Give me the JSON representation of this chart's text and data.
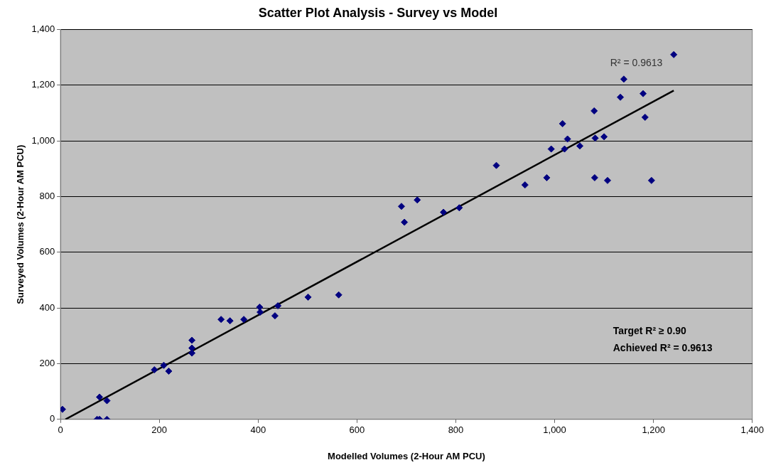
{
  "chart_data": {
    "type": "scatter",
    "title": "Scatter Plot Analysis - Survey vs Model",
    "xlabel": "Modelled Volumes (2-Hour AM PCU)",
    "ylabel": "Surveyed Volumes (2-Hour AM PCU)",
    "xlim": [
      0,
      1400
    ],
    "xticks": [
      {
        "value": 0,
        "label": "0"
      },
      {
        "value": 200,
        "label": "200"
      },
      {
        "value": 400,
        "label": "400"
      },
      {
        "value": 600,
        "label": "600"
      },
      {
        "value": 800,
        "label": "800"
      },
      {
        "value": 1000,
        "label": "1,000"
      },
      {
        "value": 1200,
        "label": "1,200"
      },
      {
        "value": 1400,
        "label": "1,400"
      }
    ],
    "ylim": [
      0,
      1400
    ],
    "yticks": [
      {
        "value": 0,
        "label": "0"
      },
      {
        "value": 200,
        "label": "200"
      },
      {
        "value": 400,
        "label": "400"
      },
      {
        "value": 600,
        "label": "600"
      },
      {
        "value": 800,
        "label": "800"
      },
      {
        "value": 1000,
        "label": "1,000"
      },
      {
        "value": 1200,
        "label": "1,200"
      },
      {
        "value": 1400,
        "label": "1,400"
      }
    ],
    "grid": "y",
    "legend": false,
    "series": [
      {
        "type": "scatter",
        "marker": "diamond",
        "color": "#000080",
        "x": [
          4,
          74,
          79,
          94,
          79,
          94,
          190,
          209,
          219,
          266,
          266,
          266,
          325,
          343,
          371,
          403,
          404,
          434,
          440,
          501,
          563,
          690,
          696,
          722,
          775,
          807,
          882,
          940,
          984,
          993,
          1016,
          1020,
          1026,
          1051,
          1080,
          1082,
          1100,
          1081,
          1107,
          1133,
          1140,
          1179,
          1183,
          1196,
          1241
        ],
        "values": [
          36,
          0,
          0,
          0,
          80,
          67,
          178,
          194,
          173,
          284,
          256,
          238,
          359,
          354,
          359,
          403,
          385,
          372,
          408,
          439,
          447,
          765,
          708,
          788,
          744,
          760,
          912,
          842,
          868,
          971,
          1062,
          971,
          1007,
          982,
          1108,
          1010,
          1015,
          868,
          858,
          1157,
          1222,
          1170,
          1085,
          858,
          1310
        ]
      },
      {
        "type": "line",
        "marker": "none",
        "color": "#000000",
        "x": [
          10,
          1241
        ],
        "values": [
          0,
          1181
        ]
      }
    ],
    "annotations": [
      "R² = 0.9613",
      "Target R² ≥ 0.90",
      "Achieved R² = 0.9613"
    ]
  }
}
